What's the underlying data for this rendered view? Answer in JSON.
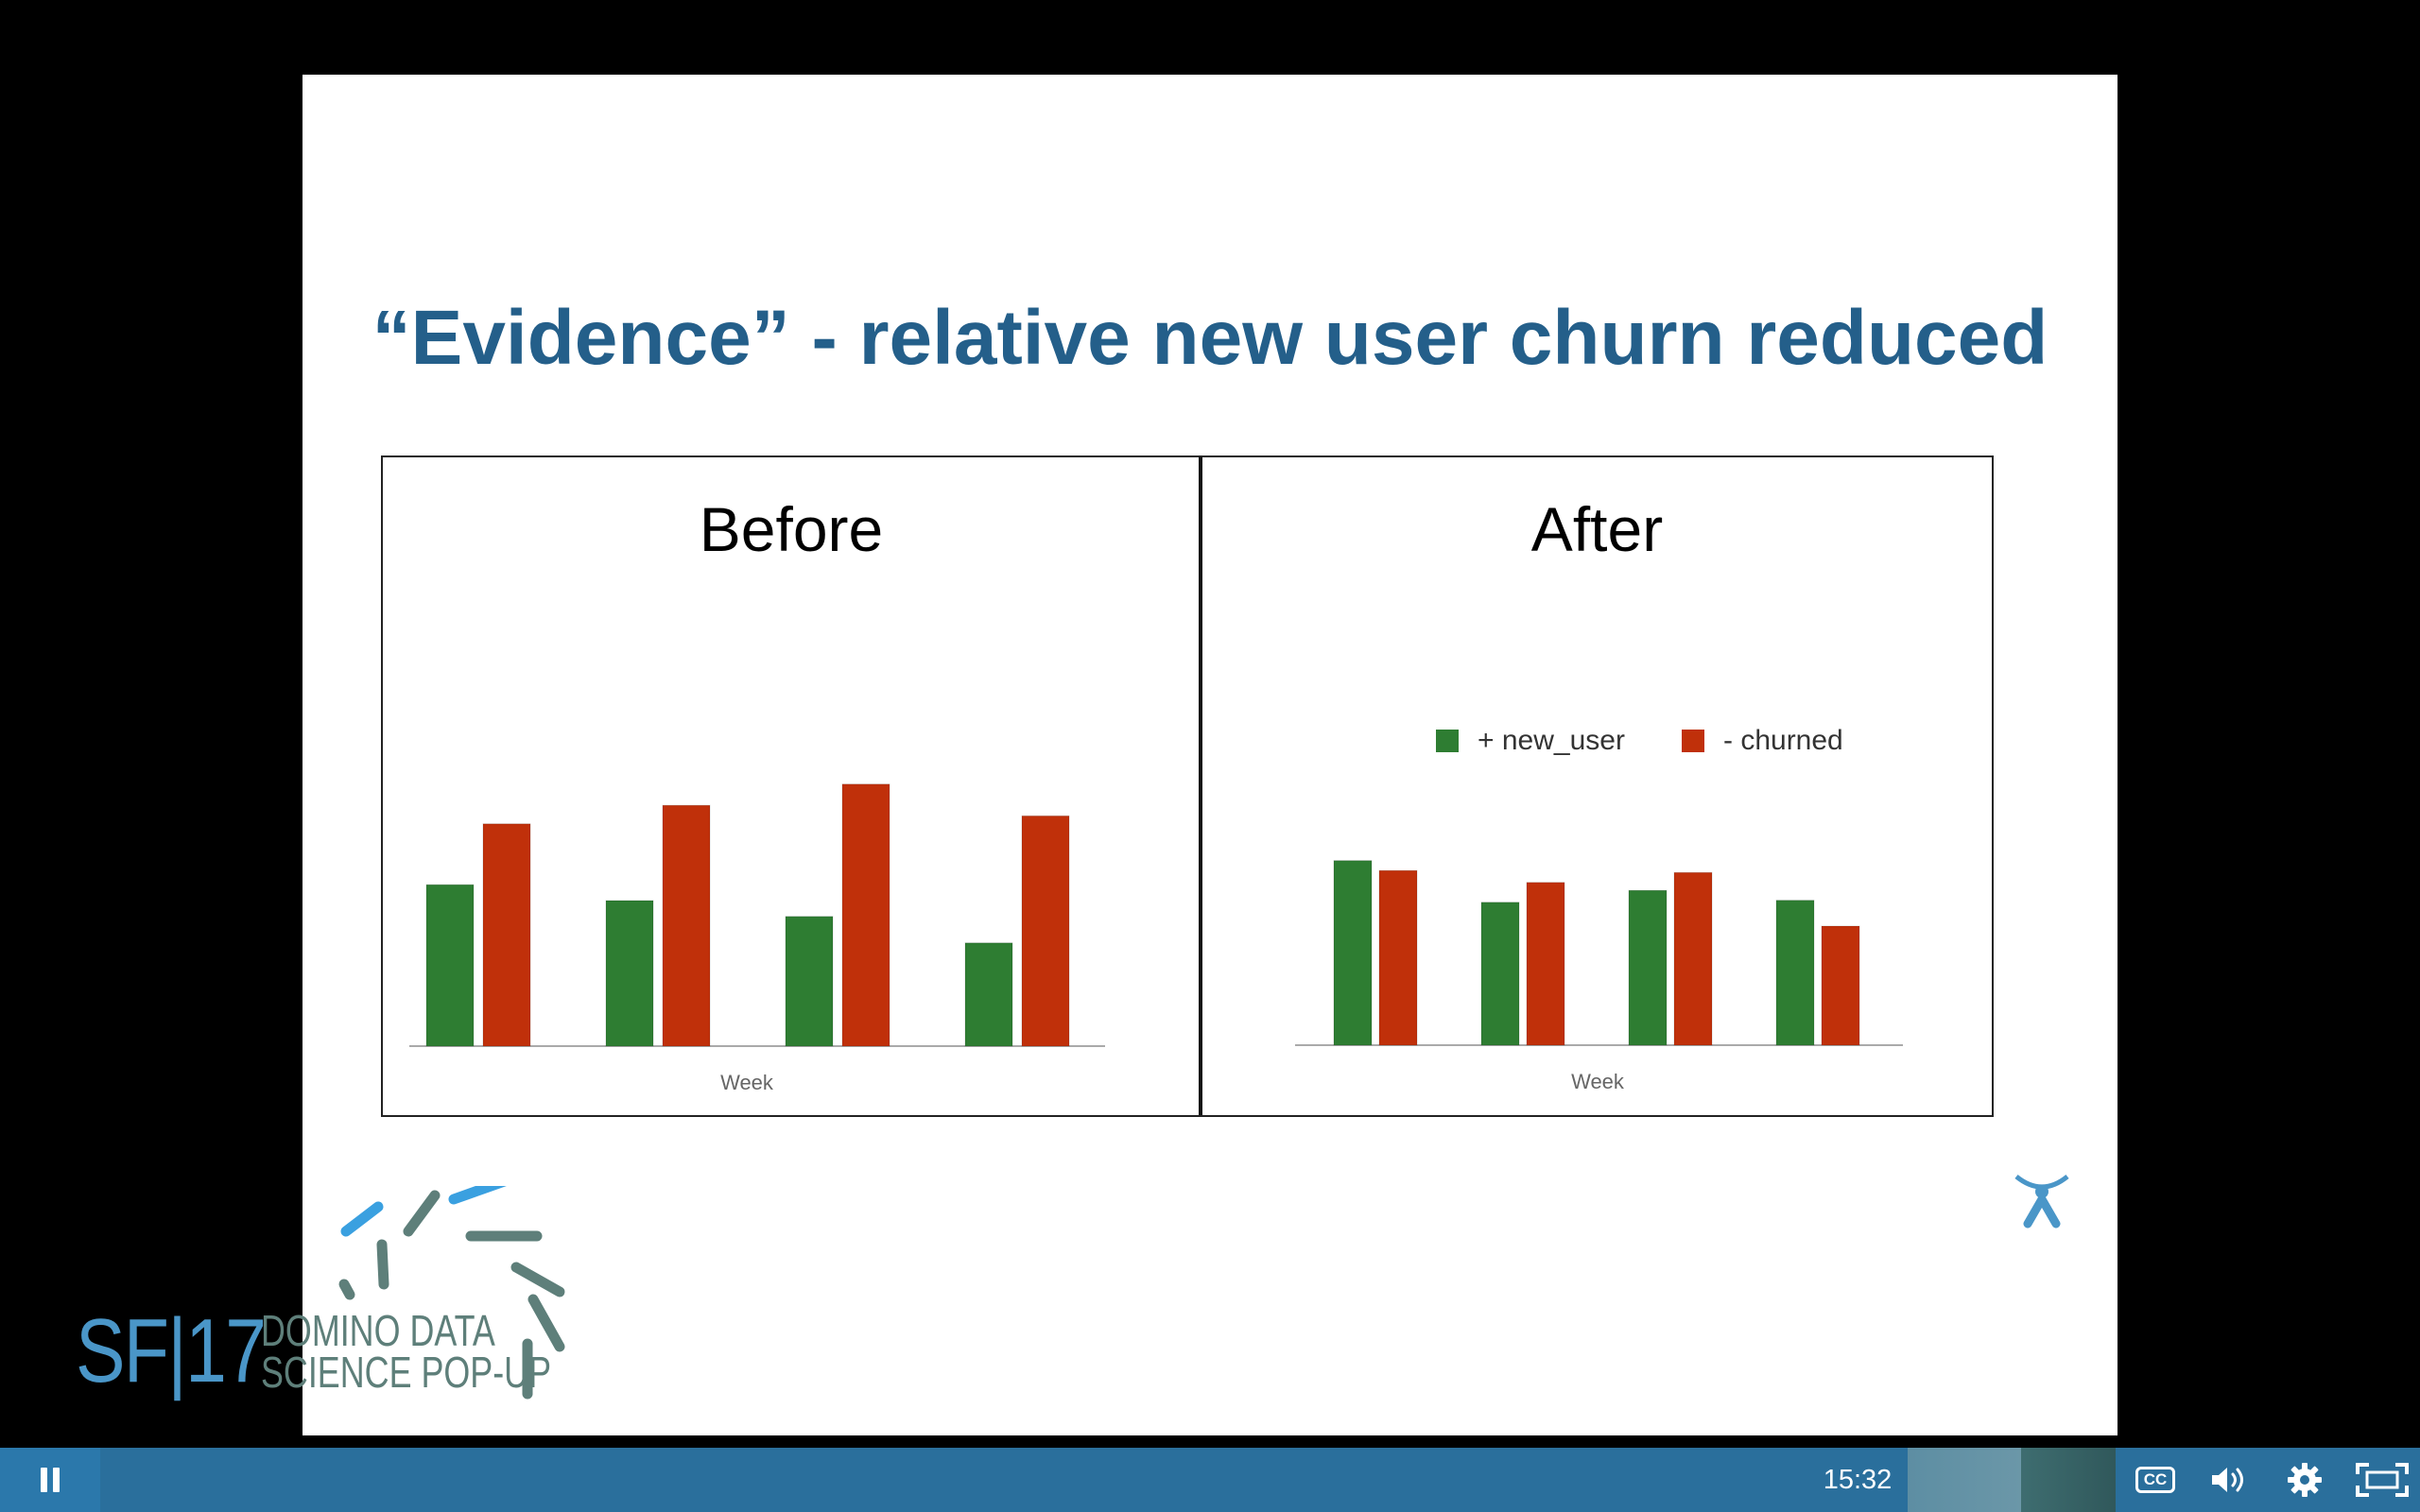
{
  "slide": {
    "title": "“Evidence” - relative new user churn reduced"
  },
  "chart_data": [
    {
      "type": "bar",
      "title": "Before",
      "xlabel": "Week",
      "ylabel": "",
      "categories": [
        "",
        "",
        "",
        ""
      ],
      "ylim": [
        0,
        100
      ],
      "series": [
        {
          "name": "+ new_user",
          "color": "#2e7d32",
          "values": [
            61,
            55,
            49,
            39
          ]
        },
        {
          "name": "- churned",
          "color": "#c0300a",
          "values": [
            84,
            91,
            99,
            87
          ]
        }
      ]
    },
    {
      "type": "bar",
      "title": "After",
      "xlabel": "Week",
      "ylabel": "",
      "categories": [
        "",
        "",
        "",
        ""
      ],
      "ylim": [
        0,
        100
      ],
      "legend": "top",
      "series": [
        {
          "name": "+ new_user",
          "color": "#2e7d32",
          "values": [
            93,
            72,
            78,
            73
          ]
        },
        {
          "name": "- churned",
          "color": "#c0300a",
          "values": [
            88,
            82,
            87,
            60
          ]
        }
      ]
    }
  ],
  "logo": {
    "sf": "SF|17",
    "line1": "DOMINO DATA",
    "line2": "SCIENCE POP-UP"
  },
  "controls": {
    "time": "15:32",
    "cc_label": "CC"
  },
  "colors": {
    "title": "#245f8a",
    "control_bar": "#2a6f9c",
    "green": "#2e7d32",
    "red": "#c0300a"
  }
}
